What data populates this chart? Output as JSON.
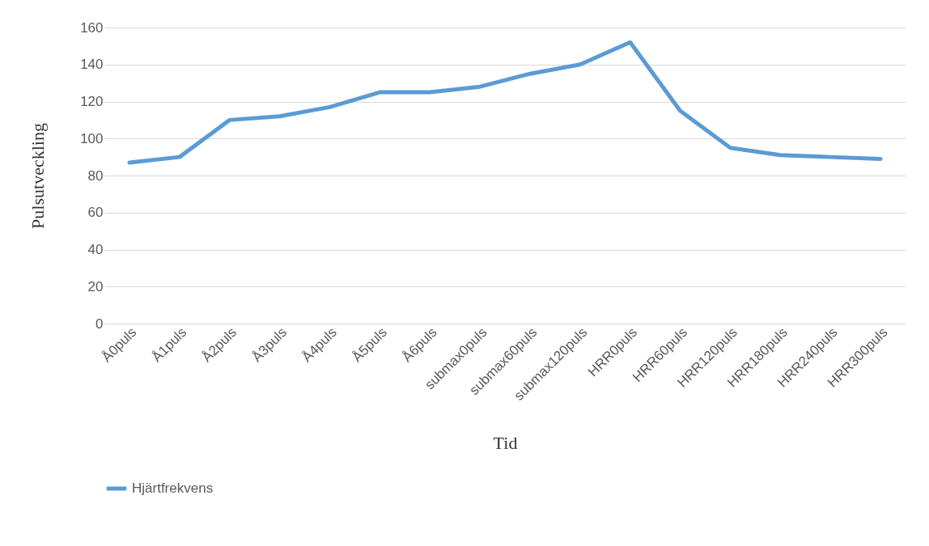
{
  "chart_data": {
    "type": "line",
    "xlabel": "Tid",
    "ylabel": "Pulsutveckling",
    "categories": [
      "Å0puls",
      "Å1puls",
      "Å2puls",
      "Å3puls",
      "Å4puls",
      "Å5puls",
      "Å6puls",
      "submax0puls",
      "submax60puls",
      "submax120puls",
      "HRR0puls",
      "HRR60puls",
      "HRR120puls",
      "HRR180puls",
      "HRR240puls",
      "HRR300puls"
    ],
    "series": [
      {
        "name": "Hjärtfrekvens",
        "color": "#5b9bd5",
        "values": [
          87,
          90,
          110,
          112,
          117,
          125,
          125,
          128,
          135,
          140,
          152,
          115,
          95,
          91,
          90,
          89
        ]
      }
    ],
    "ylim": [
      0,
      160
    ],
    "yticks": [
      0,
      20,
      40,
      60,
      80,
      100,
      120,
      140,
      160
    ],
    "grid": "y",
    "legend": "bottom",
    "marker": "none",
    "line_style": "solid"
  }
}
